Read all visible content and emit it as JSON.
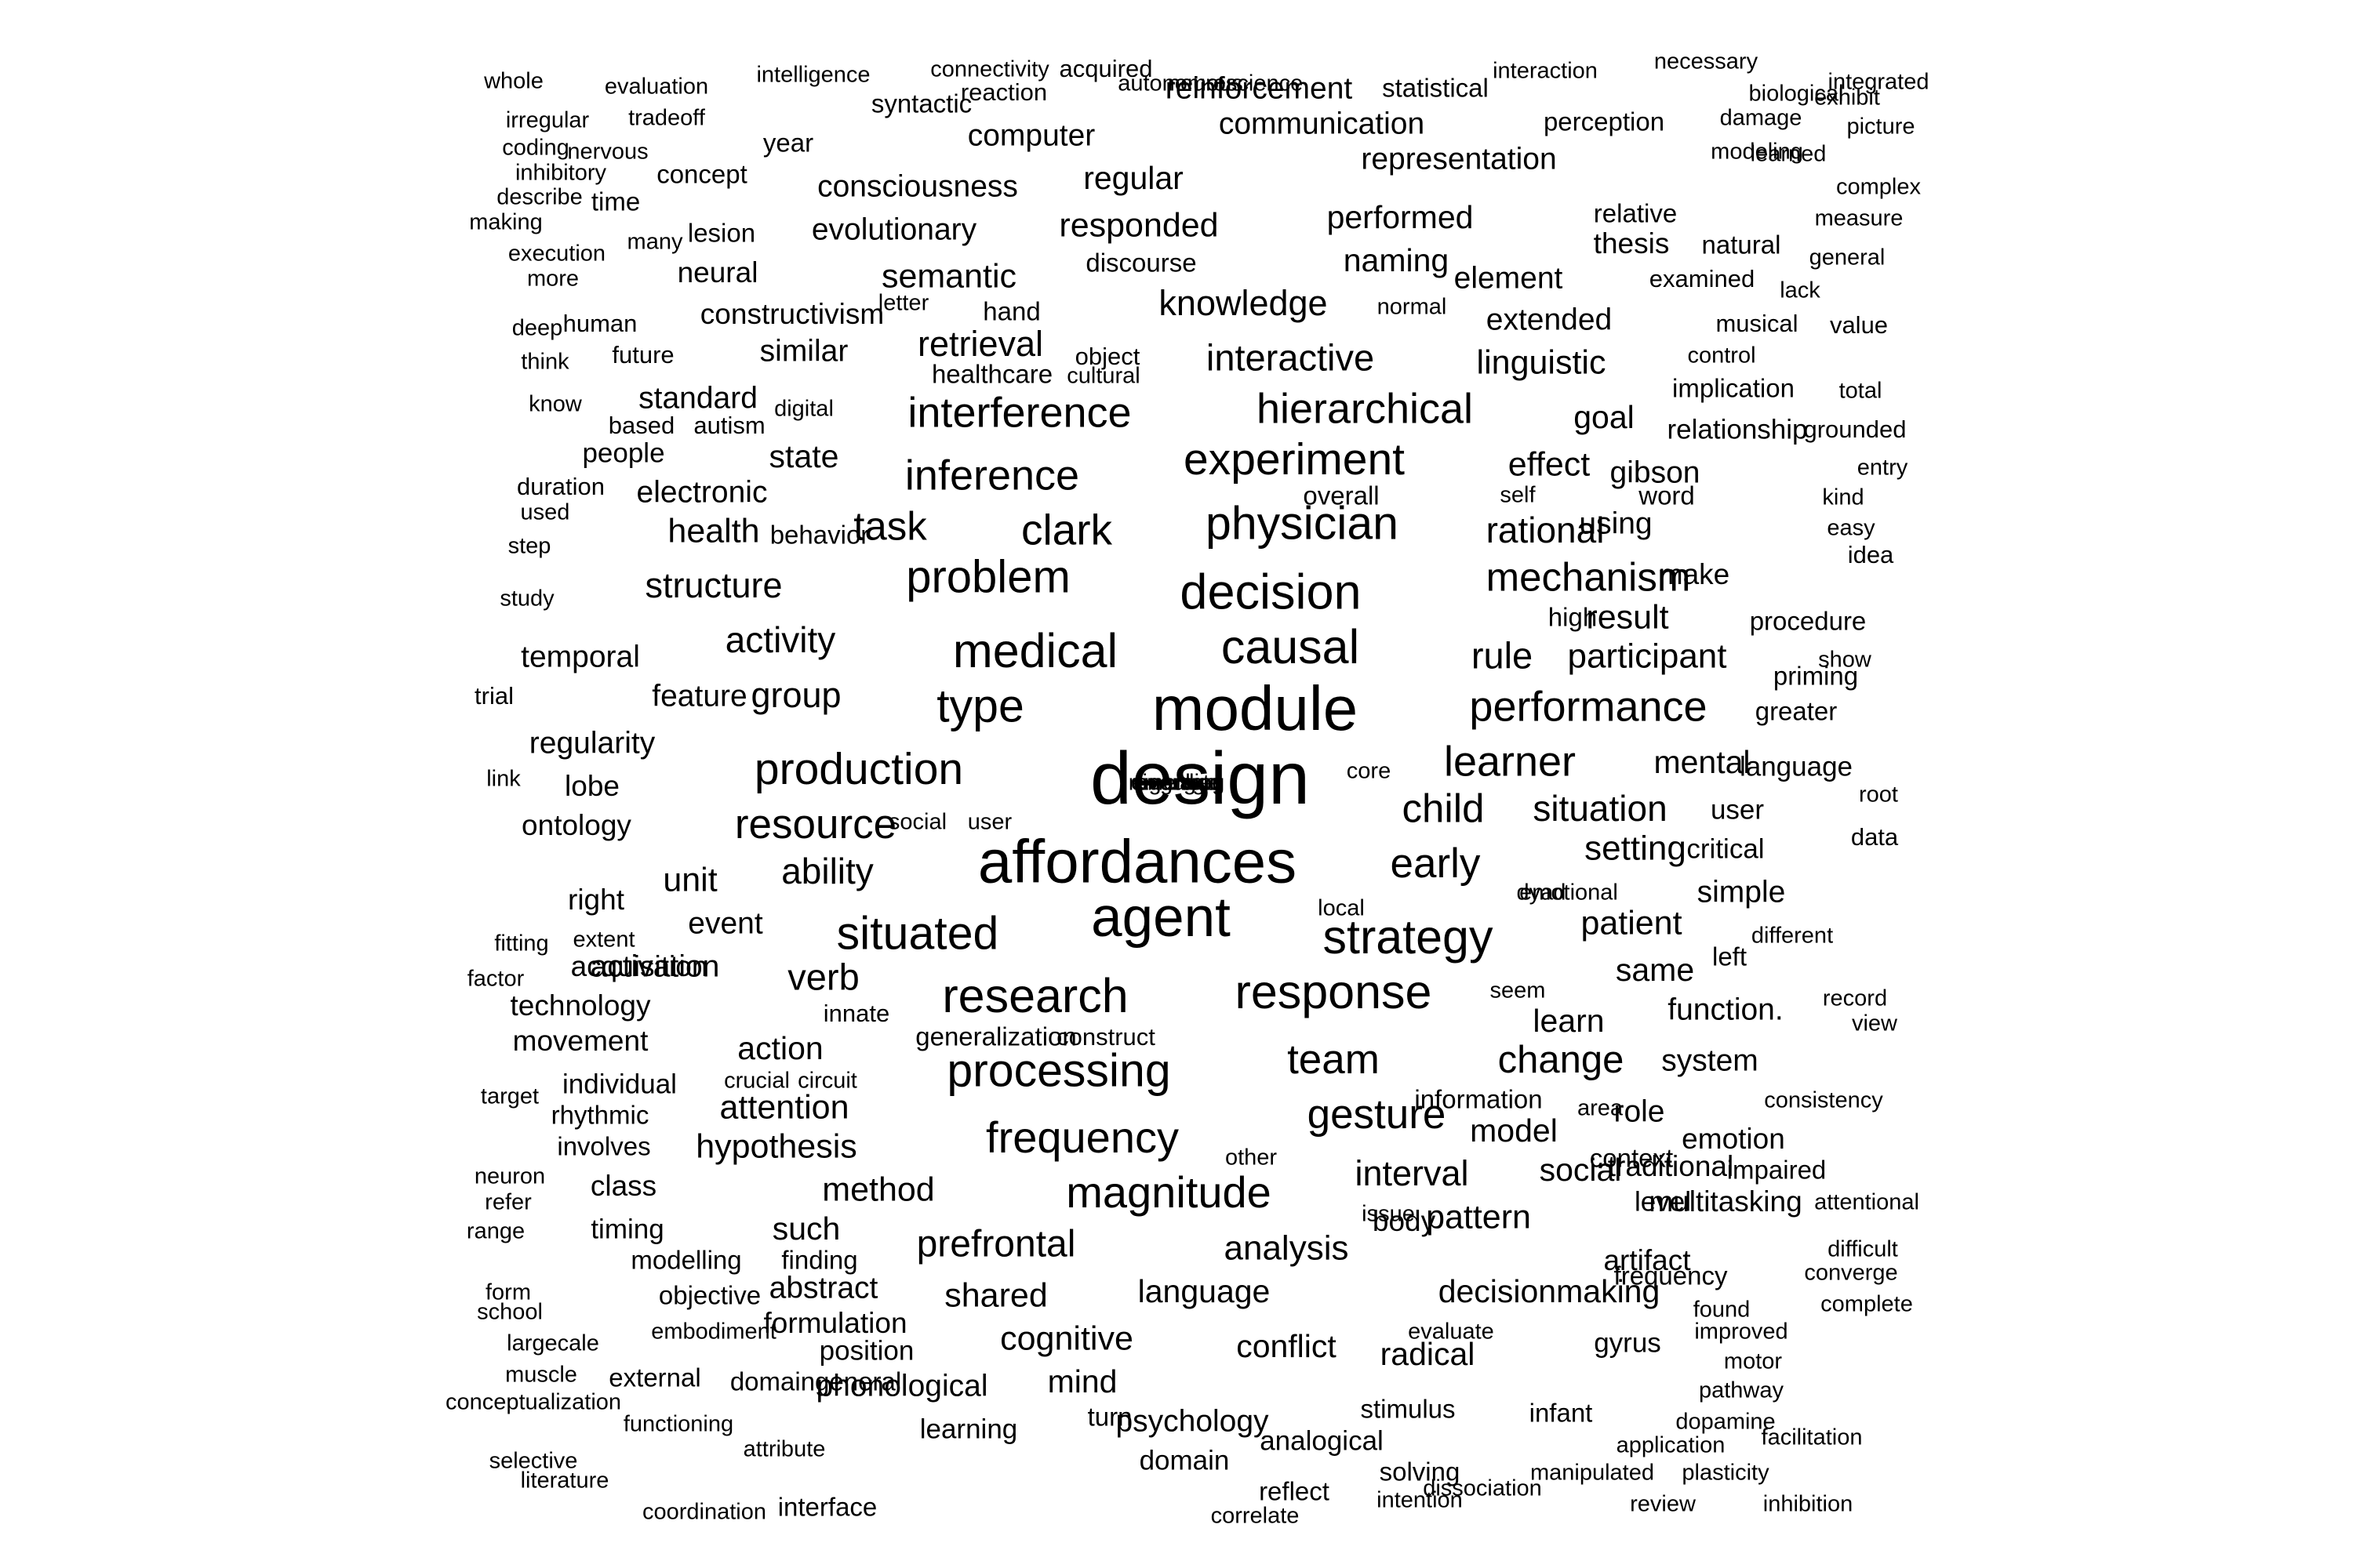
{
  "word_cloud": {
    "color": "#000000",
    "background": "#ffffff",
    "words": [
      {
        "text": "design",
        "weight": 97
      },
      {
        "text": "module",
        "weight": 82
      },
      {
        "text": "affordances",
        "weight": 80
      },
      {
        "text": "agent",
        "weight": 72
      },
      {
        "text": "decision",
        "weight": 64
      },
      {
        "text": "medical",
        "weight": 62
      },
      {
        "text": "causal",
        "weight": 62
      },
      {
        "text": "response",
        "weight": 62
      },
      {
        "text": "research",
        "weight": 62
      },
      {
        "text": "strategy",
        "weight": 62
      },
      {
        "text": "physician",
        "weight": 60
      },
      {
        "text": "type",
        "weight": 60
      },
      {
        "text": "situated",
        "weight": 60
      },
      {
        "text": "processing",
        "weight": 60
      },
      {
        "text": "problem",
        "weight": 59
      },
      {
        "text": "experiment",
        "weight": 58
      },
      {
        "text": "production",
        "weight": 58
      },
      {
        "text": "frequency",
        "weight": 57
      },
      {
        "text": "magnitude",
        "weight": 57
      },
      {
        "text": "clark",
        "weight": 56
      },
      {
        "text": "performance",
        "weight": 55
      },
      {
        "text": "interference",
        "weight": 55
      },
      {
        "text": "hierarchical",
        "weight": 55
      },
      {
        "text": "inference",
        "weight": 55
      },
      {
        "text": "learner",
        "weight": 55
      },
      {
        "text": "resource",
        "weight": 54
      },
      {
        "text": "early",
        "weight": 54
      },
      {
        "text": "gesture",
        "weight": 54
      },
      {
        "text": "team",
        "weight": 54
      },
      {
        "text": "task",
        "weight": 52
      },
      {
        "text": "mechanism",
        "weight": 52
      },
      {
        "text": "child",
        "weight": 52
      },
      {
        "text": "change",
        "weight": 50
      },
      {
        "text": "prefrontal",
        "weight": 49
      },
      {
        "text": "rule",
        "weight": 48
      },
      {
        "text": "interactive",
        "weight": 48
      },
      {
        "text": "verb",
        "weight": 48
      },
      {
        "text": "rational",
        "weight": 47
      },
      {
        "text": "activity",
        "weight": 47
      },
      {
        "text": "ability",
        "weight": 47
      },
      {
        "text": "situation",
        "weight": 47
      },
      {
        "text": "knowledge",
        "weight": 46
      },
      {
        "text": "retrieval",
        "weight": 46
      },
      {
        "text": "interval",
        "weight": 46
      },
      {
        "text": "structure",
        "weight": 46
      },
      {
        "text": "group",
        "weight": 46
      },
      {
        "text": "participant",
        "weight": 45
      },
      {
        "text": "setting",
        "weight": 45
      },
      {
        "text": "analysis",
        "weight": 45
      },
      {
        "text": "patient",
        "weight": 44
      },
      {
        "text": "linguistic",
        "weight": 44
      },
      {
        "text": "health",
        "weight": 44
      },
      {
        "text": "unit",
        "weight": 44
      },
      {
        "text": "shared",
        "weight": 44
      },
      {
        "text": "effect",
        "weight": 44
      },
      {
        "text": "result",
        "weight": 44
      },
      {
        "text": "responded",
        "weight": 44
      },
      {
        "text": "semantic",
        "weight": 44
      },
      {
        "text": "attention",
        "weight": 44
      },
      {
        "text": "hypothesis",
        "weight": 44
      },
      {
        "text": "method",
        "weight": 44
      },
      {
        "text": "pattern",
        "weight": 44
      },
      {
        "text": "cognitive",
        "weight": 44
      },
      {
        "text": "mental",
        "weight": 42
      },
      {
        "text": "goal",
        "weight": 42
      },
      {
        "text": "state",
        "weight": 42
      },
      {
        "text": "action",
        "weight": 42
      },
      {
        "text": "learn",
        "weight": 42
      },
      {
        "text": "naming",
        "weight": 42
      },
      {
        "text": "performed",
        "weight": 42
      },
      {
        "text": "regular",
        "weight": 42
      },
      {
        "text": "same",
        "weight": 42
      },
      {
        "text": "model",
        "weight": 42
      },
      {
        "text": "such",
        "weight": 42
      },
      {
        "text": "social",
        "weight": 42
      },
      {
        "text": "language",
        "weight": 42
      },
      {
        "text": "decisionmaking",
        "weight": 42
      },
      {
        "text": "conflict",
        "weight": 42
      },
      {
        "text": "mind",
        "weight": 42
      },
      {
        "text": "radical",
        "weight": 42
      },
      {
        "text": "event",
        "weight": 40
      },
      {
        "text": "activation",
        "weight": 40
      },
      {
        "text": "extended",
        "weight": 40
      },
      {
        "text": "gibson",
        "weight": 40
      },
      {
        "text": "using",
        "weight": 40
      },
      {
        "text": "standard",
        "weight": 40
      },
      {
        "text": "similar",
        "weight": 40
      },
      {
        "text": "temporal",
        "weight": 40
      },
      {
        "text": "regularity",
        "weight": 40
      },
      {
        "text": "electronic",
        "weight": 40
      },
      {
        "text": "element",
        "weight": 40
      },
      {
        "text": "consciousness",
        "weight": 40
      },
      {
        "text": "evolutionary",
        "weight": 40
      },
      {
        "text": "representation",
        "weight": 40
      },
      {
        "text": "communication",
        "weight": 40
      },
      {
        "text": "computer",
        "weight": 40
      },
      {
        "text": "reinforcement",
        "weight": 40
      },
      {
        "text": "simple",
        "weight": 40
      },
      {
        "text": "system",
        "weight": 40
      },
      {
        "text": "function.",
        "weight": 40
      },
      {
        "text": "role",
        "weight": 40
      },
      {
        "text": "emotion",
        "weight": 38
      },
      {
        "text": "phonological",
        "weight": 40
      },
      {
        "text": "psychology",
        "weight": 40
      },
      {
        "text": "abstract",
        "weight": 40
      },
      {
        "text": "feature",
        "weight": 40
      },
      {
        "text": "lobe",
        "weight": 38
      },
      {
        "text": "ontology",
        "weight": 38
      },
      {
        "text": "right",
        "weight": 38
      },
      {
        "text": "acquisition",
        "weight": 38
      },
      {
        "text": "technology",
        "weight": 38
      },
      {
        "text": "movement",
        "weight": 38
      },
      {
        "text": "class",
        "weight": 38
      },
      {
        "text": "artifact",
        "weight": 38
      },
      {
        "text": "memory",
        "weight": 38
      },
      {
        "text": "body",
        "weight": 38
      },
      {
        "text": "make",
        "weight": 38
      },
      {
        "text": "user",
        "weight": 36
      },
      {
        "text": "critical",
        "weight": 36
      },
      {
        "text": "level",
        "weight": 36
      },
      {
        "text": "multitasking",
        "weight": 38
      },
      {
        "text": "traditional",
        "weight": 38
      },
      {
        "text": "neural",
        "weight": 38
      },
      {
        "text": "thesis",
        "weight": 38
      },
      {
        "text": "constructivism",
        "weight": 38
      },
      {
        "text": "formulation",
        "weight": 38
      },
      {
        "text": "position",
        "weight": 36
      },
      {
        "text": "people",
        "weight": 36
      },
      {
        "text": "relationship",
        "weight": 36
      },
      {
        "text": "individual",
        "weight": 36
      },
      {
        "text": "timing",
        "weight": 36
      },
      {
        "text": "learning",
        "weight": 36
      },
      {
        "text": "domain",
        "weight": 36
      },
      {
        "text": "analogical",
        "weight": 36
      },
      {
        "text": "stimulus",
        "weight": 34
      },
      {
        "text": "gyrus",
        "weight": 36
      },
      {
        "text": "infant",
        "weight": 34
      },
      {
        "text": "greater",
        "weight": 34
      },
      {
        "text": "language",
        "weight": 36
      },
      {
        "text": "left",
        "weight": 34
      },
      {
        "text": "word",
        "weight": 34
      },
      {
        "text": "context",
        "weight": 34
      },
      {
        "text": "high",
        "weight": 34
      },
      {
        "text": "interface",
        "weight": 34
      },
      {
        "text": "overall",
        "weight": 34
      },
      {
        "text": "behavior",
        "weight": 34
      },
      {
        "text": "discourse",
        "weight": 34
      },
      {
        "text": "hand",
        "weight": 34
      },
      {
        "text": "implication",
        "weight": 34
      },
      {
        "text": "generalization",
        "weight": 34
      },
      {
        "text": "finding",
        "weight": 34
      },
      {
        "text": "objective",
        "weight": 34
      },
      {
        "text": "modelling",
        "weight": 34
      },
      {
        "text": "rhythmic",
        "weight": 34
      },
      {
        "text": "involves",
        "weight": 34
      },
      {
        "text": "frequency",
        "weight": 34
      },
      {
        "text": "impaired",
        "weight": 34
      },
      {
        "text": "domaingeneral",
        "weight": 34
      },
      {
        "text": "external",
        "weight": 34
      },
      {
        "text": "turn",
        "weight": 34
      },
      {
        "text": "solving",
        "weight": 34
      },
      {
        "text": "reflect",
        "weight": 34
      },
      {
        "text": "information",
        "weight": 34
      },
      {
        "text": "priming",
        "weight": 34
      },
      {
        "text": "procedure",
        "weight": 34
      },
      {
        "text": "relative",
        "weight": 34
      },
      {
        "text": "natural",
        "weight": 34
      },
      {
        "text": "perception",
        "weight": 34
      },
      {
        "text": "statistical",
        "weight": 34
      },
      {
        "text": "syntactic",
        "weight": 34
      },
      {
        "text": "year",
        "weight": 34
      },
      {
        "text": "concept",
        "weight": 34
      },
      {
        "text": "time",
        "weight": 34
      },
      {
        "text": "lesion",
        "weight": 34
      },
      {
        "text": "reaction",
        "weight": 32
      },
      {
        "text": "acquired",
        "weight": 32
      },
      {
        "text": "healthcare",
        "weight": 34
      },
      {
        "text": "human",
        "weight": 32
      },
      {
        "text": "future",
        "weight": 32
      },
      {
        "text": "based",
        "weight": 32
      },
      {
        "text": "autism",
        "weight": 32
      },
      {
        "text": "construct",
        "weight": 32
      },
      {
        "text": "innate",
        "weight": 32
      },
      {
        "text": "emotional",
        "weight": 30
      },
      {
        "text": "consistency",
        "weight": 30
      },
      {
        "text": "improved",
        "weight": 30
      },
      {
        "text": "application",
        "weight": 30
      },
      {
        "text": "manipulated",
        "weight": 30
      },
      {
        "text": "dissociation",
        "weight": 30
      },
      {
        "text": "plasticity",
        "weight": 30
      },
      {
        "text": "review",
        "weight": 30
      },
      {
        "text": "inhibition",
        "weight": 30
      },
      {
        "text": "facilitation",
        "weight": 30
      },
      {
        "text": "dopamine",
        "weight": 30
      },
      {
        "text": "motor",
        "weight": 30
      },
      {
        "text": "pathway",
        "weight": 30
      },
      {
        "text": "complete",
        "weight": 30
      },
      {
        "text": "converge",
        "weight": 30
      },
      {
        "text": "difficult",
        "weight": 30
      },
      {
        "text": "attentional",
        "weight": 30
      },
      {
        "text": "found",
        "weight": 30
      },
      {
        "text": "evaluate",
        "weight": 30
      },
      {
        "text": "embodiment",
        "weight": 30
      },
      {
        "text": "largecale",
        "weight": 30
      },
      {
        "text": "muscle",
        "weight": 30
      },
      {
        "text": "conceptualization",
        "weight": 30
      },
      {
        "text": "functioning",
        "weight": 30
      },
      {
        "text": "attribute",
        "weight": 30
      },
      {
        "text": "selective",
        "weight": 30
      },
      {
        "text": "literature",
        "weight": 30
      },
      {
        "text": "coordination",
        "weight": 30
      },
      {
        "text": "intention",
        "weight": 30
      },
      {
        "text": "correlate",
        "weight": 30
      },
      {
        "text": "form",
        "weight": 30
      },
      {
        "text": "school",
        "weight": 30
      },
      {
        "text": "range",
        "weight": 30
      },
      {
        "text": "refer",
        "weight": 30
      },
      {
        "text": "neuron",
        "weight": 30
      },
      {
        "text": "target",
        "weight": 30
      },
      {
        "text": "crucial",
        "weight": 30
      },
      {
        "text": "circuit",
        "weight": 30
      },
      {
        "text": "factor",
        "weight": 30
      },
      {
        "text": "fitting",
        "weight": 30
      },
      {
        "text": "extent",
        "weight": 30
      },
      {
        "text": "local",
        "weight": 30
      },
      {
        "text": "dyad",
        "weight": 30
      },
      {
        "text": "different",
        "weight": 30
      },
      {
        "text": "seem",
        "weight": 30
      },
      {
        "text": "record",
        "weight": 30
      },
      {
        "text": "view",
        "weight": 30
      },
      {
        "text": "area",
        "weight": 30
      },
      {
        "text": "issue",
        "weight": 30
      },
      {
        "text": "other",
        "weight": 30
      },
      {
        "text": "link",
        "weight": 30
      },
      {
        "text": "social",
        "weight": 30
      },
      {
        "text": "user",
        "weight": 30
      },
      {
        "text": "core",
        "weight": 30
      },
      {
        "text": "root",
        "weight": 30
      },
      {
        "text": "data",
        "weight": 32
      },
      {
        "text": "trial",
        "weight": 32
      },
      {
        "text": "study",
        "weight": 30
      },
      {
        "text": "step",
        "weight": 30
      },
      {
        "text": "used",
        "weight": 30
      },
      {
        "text": "duration",
        "weight": 32
      },
      {
        "text": "digital",
        "weight": 30
      },
      {
        "text": "cultural",
        "weight": 30
      },
      {
        "text": "object",
        "weight": 32
      },
      {
        "text": "self",
        "weight": 30
      },
      {
        "text": "kind",
        "weight": 30
      },
      {
        "text": "easy",
        "weight": 30
      },
      {
        "text": "idea",
        "weight": 32
      },
      {
        "text": "show",
        "weight": 30
      },
      {
        "text": "entry",
        "weight": 30
      },
      {
        "text": "grounded",
        "weight": 32
      },
      {
        "text": "total",
        "weight": 30
      },
      {
        "text": "control",
        "weight": 30
      },
      {
        "text": "musical",
        "weight": 32
      },
      {
        "text": "value",
        "weight": 32
      },
      {
        "text": "lack",
        "weight": 30
      },
      {
        "text": "examined",
        "weight": 32
      },
      {
        "text": "general",
        "weight": 30
      },
      {
        "text": "measure",
        "weight": 30
      },
      {
        "text": "complex",
        "weight": 30
      },
      {
        "text": "learned",
        "weight": 30
      },
      {
        "text": "picture",
        "weight": 30
      },
      {
        "text": "exhibit",
        "weight": 30
      },
      {
        "text": "modeling",
        "weight": 30
      },
      {
        "text": "damage",
        "weight": 30
      },
      {
        "text": "integrated",
        "weight": 30
      },
      {
        "text": "biological",
        "weight": 30
      },
      {
        "text": "necessary",
        "weight": 30
      },
      {
        "text": "interaction",
        "weight": 30
      },
      {
        "text": "autonomous",
        "weight": 30
      },
      {
        "text": "neuroscience",
        "weight": 30
      },
      {
        "text": "normal",
        "weight": 30
      },
      {
        "text": "letter",
        "weight": 30
      },
      {
        "text": "know",
        "weight": 30
      },
      {
        "text": "think",
        "weight": 30
      },
      {
        "text": "deep",
        "weight": 30
      },
      {
        "text": "more",
        "weight": 30
      },
      {
        "text": "execution",
        "weight": 30
      },
      {
        "text": "many",
        "weight": 30
      },
      {
        "text": "making",
        "weight": 30
      },
      {
        "text": "describe",
        "weight": 30
      },
      {
        "text": "inhibitory",
        "weight": 30
      },
      {
        "text": "coding",
        "weight": 30
      },
      {
        "text": "nervous",
        "weight": 30
      },
      {
        "text": "irregular",
        "weight": 30
      },
      {
        "text": "tradeoff",
        "weight": 30
      },
      {
        "text": "whole",
        "weight": 30
      },
      {
        "text": "evaluation",
        "weight": 30
      },
      {
        "text": "intelligence",
        "weight": 30
      },
      {
        "text": "connectivity",
        "weight": 30
      },
      {
        "text": "regarding",
        "weight": 30
      },
      {
        "text": "emerged",
        "weight": 30
      },
      {
        "text": "average",
        "weight": 30
      },
      {
        "text": "cingulate",
        "weight": 30
      }
    ]
  }
}
